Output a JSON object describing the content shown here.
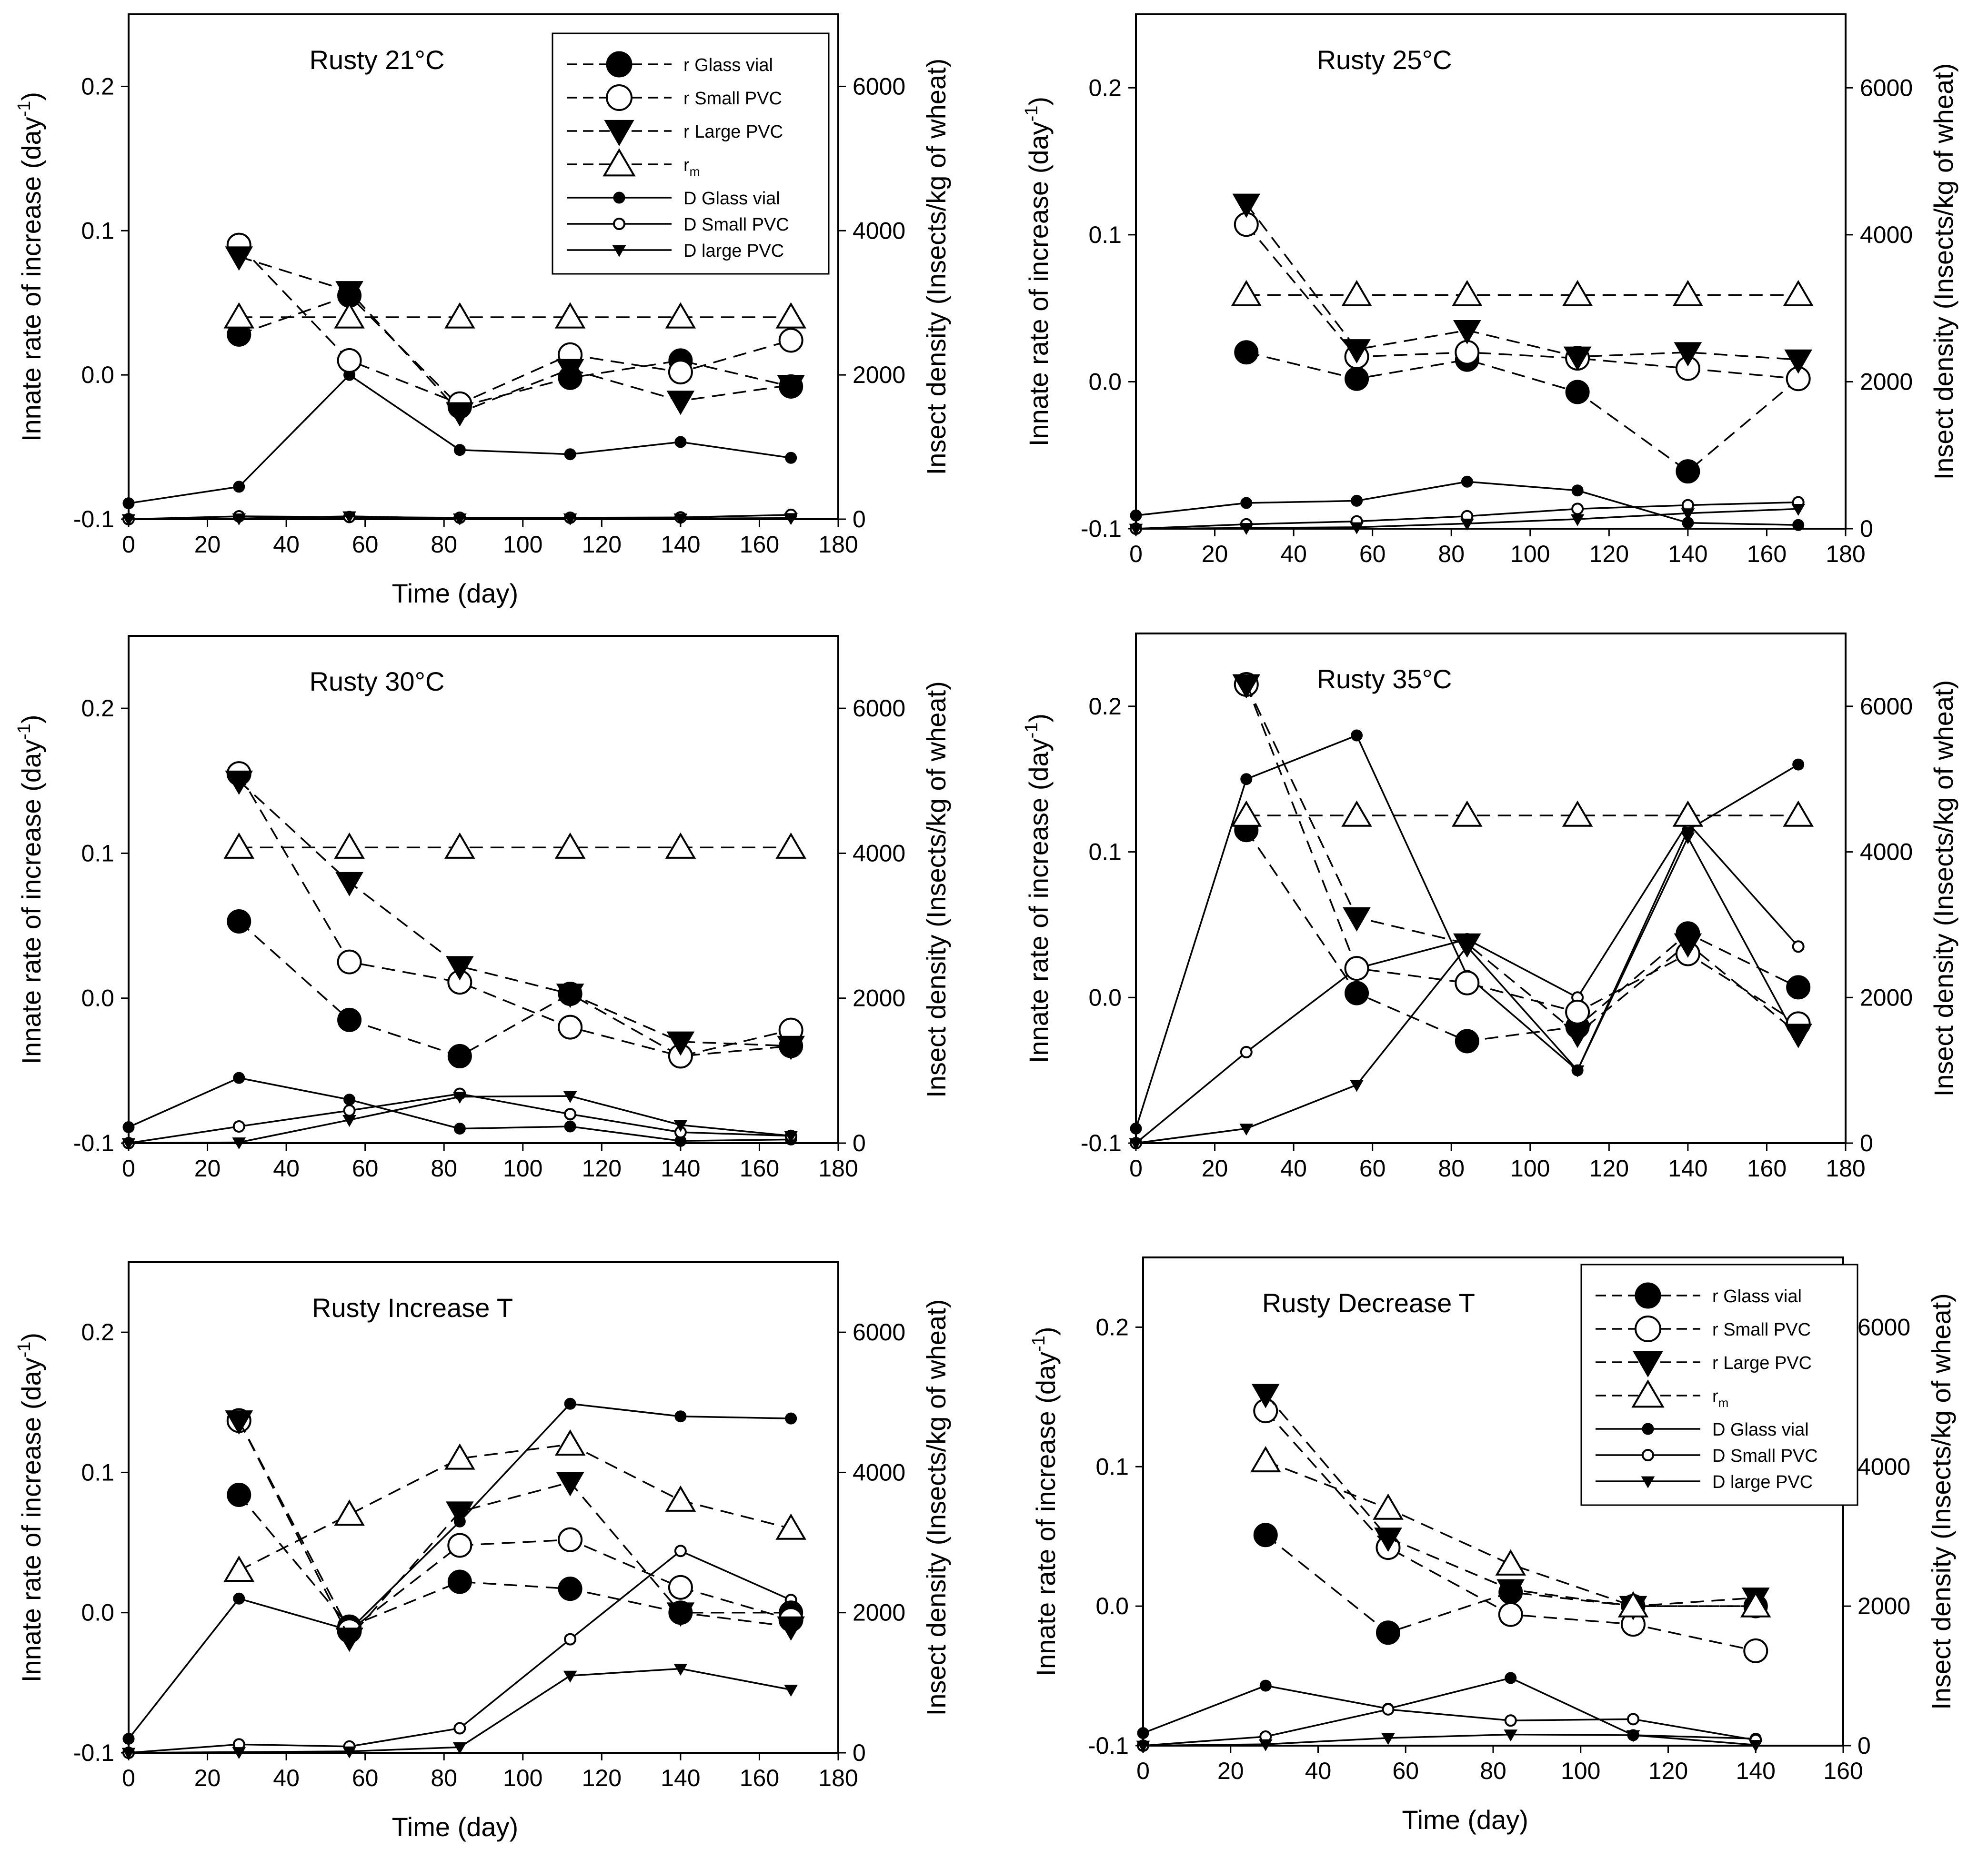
{
  "figure": {
    "time_label": "Time (day)"
  },
  "legend": {
    "r_glass": "r Glass vial",
    "r_small": "r Small PVC",
    "r_large": "r Large PVC",
    "rm_base": "r",
    "rm_sub": "m",
    "d_glass": "D Glass vial",
    "d_small": "D Small PVC",
    "d_large": "D large PVC"
  },
  "chart_data": [
    {
      "type": "line",
      "title": "Rusty 21°C",
      "xlabel": "Time (day)",
      "ylabel_left": "Innate rate of increase (day-1)",
      "ylabel_right": "Insect density (Insects/kg of wheat)",
      "xlim": [
        0,
        180
      ],
      "xticks": [
        0,
        20,
        40,
        60,
        80,
        100,
        120,
        140,
        160,
        180
      ],
      "ylim_left": [
        -0.1,
        0.25
      ],
      "yticks_left": [
        -0.1,
        0.0,
        0.1,
        0.2
      ],
      "ylim_right": [
        0,
        7000
      ],
      "yticks_right": [
        0,
        2000,
        4000,
        6000
      ],
      "show_legend": true,
      "legend_position": "top-right",
      "r_series": [
        {
          "name": "r Glass vial",
          "x": [
            28,
            56,
            84,
            112,
            140,
            168
          ],
          "y": [
            0.028,
            0.055,
            -0.022,
            -0.002,
            0.01,
            -0.008
          ]
        },
        {
          "name": "r Small PVC",
          "x": [
            28,
            56,
            84,
            112,
            140,
            168
          ],
          "y": [
            0.09,
            0.01,
            -0.02,
            0.014,
            0.002,
            0.024
          ]
        },
        {
          "name": "r Large PVC",
          "x": [
            28,
            56,
            84,
            112,
            140,
            168
          ],
          "y": [
            0.082,
            0.058,
            -0.026,
            0.004,
            -0.018,
            -0.007
          ]
        },
        {
          "name": "rm",
          "x": [
            28,
            56,
            84,
            112,
            140,
            168
          ],
          "y": [
            0.04,
            0.04,
            0.04,
            0.04,
            0.04,
            0.04
          ]
        }
      ],
      "d_series": [
        {
          "name": "D Glass vial",
          "x": [
            0,
            28,
            56,
            84,
            112,
            140,
            168
          ],
          "y": [
            220,
            450,
            2000,
            960,
            900,
            1070,
            850
          ]
        },
        {
          "name": "D Small PVC",
          "x": [
            0,
            28,
            56,
            84,
            112,
            140,
            168
          ],
          "y": [
            0,
            40,
            30,
            20,
            20,
            25,
            60
          ]
        },
        {
          "name": "D large PVC",
          "x": [
            0,
            28,
            56,
            84,
            112,
            140,
            168
          ],
          "y": [
            0,
            10,
            40,
            10,
            10,
            10,
            15
          ]
        }
      ]
    },
    {
      "type": "line",
      "title": "Rusty 25°C",
      "xlabel": "",
      "ylabel_left": "Innate rate of increase (day-1)",
      "ylabel_right": "Insect density (Insects/kg of wheat)",
      "xlim": [
        0,
        180
      ],
      "xticks": [
        0,
        20,
        40,
        60,
        80,
        100,
        120,
        140,
        160,
        180
      ],
      "ylim_left": [
        -0.1,
        0.25
      ],
      "yticks_left": [
        -0.1,
        0.0,
        0.1,
        0.2
      ],
      "ylim_right": [
        0,
        7000
      ],
      "yticks_right": [
        0,
        2000,
        4000,
        6000
      ],
      "show_legend": false,
      "legend_position": "",
      "r_series": [
        {
          "name": "r Glass vial",
          "x": [
            28,
            56,
            84,
            112,
            140,
            168
          ],
          "y": [
            0.02,
            0.002,
            0.015,
            -0.007,
            -0.061,
            0.002
          ]
        },
        {
          "name": "r Small PVC",
          "x": [
            28,
            56,
            84,
            112,
            140,
            168
          ],
          "y": [
            0.107,
            0.017,
            0.02,
            0.016,
            0.009,
            0.002
          ]
        },
        {
          "name": "r Large PVC",
          "x": [
            28,
            56,
            84,
            112,
            140,
            168
          ],
          "y": [
            0.121,
            0.022,
            0.035,
            0.017,
            0.02,
            0.015
          ]
        },
        {
          "name": "rm",
          "x": [
            28,
            56,
            84,
            112,
            140,
            168
          ],
          "y": [
            0.059,
            0.059,
            0.059,
            0.059,
            0.059,
            0.059
          ]
        }
      ],
      "d_series": [
        {
          "name": "D Glass vial",
          "x": [
            0,
            28,
            56,
            84,
            112,
            140,
            168
          ],
          "y": [
            180,
            350,
            380,
            640,
            520,
            80,
            50
          ]
        },
        {
          "name": "D Small PVC",
          "x": [
            0,
            28,
            56,
            84,
            112,
            140,
            168
          ],
          "y": [
            0,
            60,
            100,
            170,
            270,
            320,
            360
          ]
        },
        {
          "name": "D large PVC",
          "x": [
            0,
            28,
            56,
            84,
            112,
            140,
            168
          ],
          "y": [
            0,
            10,
            20,
            70,
            130,
            210,
            270
          ]
        }
      ]
    },
    {
      "type": "line",
      "title": "Rusty 30°C",
      "xlabel": "",
      "ylabel_left": "Innate rate of increase (day-1)",
      "ylabel_right": "Insect density (Insects/kg of wheat)",
      "xlim": [
        0,
        180
      ],
      "xticks": [
        0,
        20,
        40,
        60,
        80,
        100,
        120,
        140,
        160,
        180
      ],
      "ylim_left": [
        -0.1,
        0.25
      ],
      "yticks_left": [
        -0.1,
        0.0,
        0.1,
        0.2
      ],
      "ylim_right": [
        0,
        7000
      ],
      "yticks_right": [
        0,
        2000,
        4000,
        6000
      ],
      "show_legend": false,
      "legend_position": "",
      "r_series": [
        {
          "name": "r Glass vial",
          "x": [
            28,
            56,
            84,
            112,
            140,
            168
          ],
          "y": [
            0.053,
            -0.015,
            -0.04,
            0.003,
            -0.04,
            -0.033
          ]
        },
        {
          "name": "r Small PVC",
          "x": [
            28,
            56,
            84,
            112,
            140,
            168
          ],
          "y": [
            0.155,
            0.025,
            0.011,
            -0.02,
            -0.04,
            -0.022
          ]
        },
        {
          "name": "r Large PVC",
          "x": [
            28,
            56,
            84,
            112,
            140,
            168
          ],
          "y": [
            0.15,
            0.08,
            0.022,
            0.003,
            -0.03,
            -0.033
          ]
        },
        {
          "name": "rm",
          "x": [
            28,
            56,
            84,
            112,
            140,
            168
          ],
          "y": [
            0.104,
            0.104,
            0.104,
            0.104,
            0.104,
            0.104
          ]
        }
      ],
      "d_series": [
        {
          "name": "D Glass vial",
          "x": [
            0,
            28,
            56,
            84,
            112,
            140,
            168
          ],
          "y": [
            220,
            900,
            600,
            200,
            230,
            30,
            50
          ]
        },
        {
          "name": "D Small PVC",
          "x": [
            0,
            28,
            56,
            84,
            112,
            140,
            168
          ],
          "y": [
            0,
            230,
            450,
            680,
            400,
            150,
            100
          ]
        },
        {
          "name": "D large PVC",
          "x": [
            0,
            28,
            56,
            84,
            112,
            140,
            168
          ],
          "y": [
            0,
            10,
            320,
            640,
            650,
            250,
            100
          ]
        }
      ]
    },
    {
      "type": "line",
      "title": "Rusty 35°C",
      "xlabel": "",
      "ylabel_left": "Innate rate of increase (day-1)",
      "ylabel_right": "Insect density (Insects/kg of wheat)",
      "xlim": [
        0,
        180
      ],
      "xticks": [
        0,
        20,
        40,
        60,
        80,
        100,
        120,
        140,
        160,
        180
      ],
      "ylim_left": [
        -0.1,
        0.25
      ],
      "yticks_left": [
        -0.1,
        0.0,
        0.1,
        0.2
      ],
      "ylim_right": [
        0,
        7000
      ],
      "yticks_right": [
        0,
        2000,
        4000,
        6000
      ],
      "show_legend": false,
      "legend_position": "",
      "r_series": [
        {
          "name": "r Glass vial",
          "x": [
            28,
            56,
            84,
            112,
            140,
            168
          ],
          "y": [
            0.115,
            0.003,
            -0.03,
            -0.02,
            0.044,
            0.007
          ]
        },
        {
          "name": "r Small PVC",
          "x": [
            28,
            56,
            84,
            112,
            140,
            168
          ],
          "y": [
            0.215,
            0.02,
            0.01,
            -0.01,
            0.03,
            -0.018
          ]
        },
        {
          "name": "r Large PVC",
          "x": [
            28,
            56,
            84,
            112,
            140,
            168
          ],
          "y": [
            0.215,
            0.055,
            0.037,
            -0.025,
            0.037,
            -0.025
          ]
        },
        {
          "name": "rm",
          "x": [
            28,
            56,
            84,
            112,
            140,
            168
          ],
          "y": [
            0.125,
            0.125,
            0.125,
            0.125,
            0.125,
            0.125
          ]
        }
      ],
      "d_series": [
        {
          "name": "D Glass vial",
          "x": [
            0,
            28,
            56,
            84,
            112,
            140,
            168
          ],
          "y": [
            200,
            5000,
            5600,
            2300,
            1000,
            4300,
            5200
          ]
        },
        {
          "name": "D Small PVC",
          "x": [
            0,
            28,
            56,
            84,
            112,
            140,
            168
          ],
          "y": [
            0,
            1250,
            2400,
            2800,
            2000,
            4400,
            2700
          ]
        },
        {
          "name": "D large PVC",
          "x": [
            0,
            28,
            56,
            84,
            112,
            140,
            168
          ],
          "y": [
            0,
            200,
            800,
            2700,
            1000,
            4200,
            1400
          ]
        }
      ]
    },
    {
      "type": "line",
      "title": "Rusty Increase T",
      "xlabel": "Time (day)",
      "ylabel_left": "Innate rate of increase (day-1)",
      "ylabel_right": "Insect density (Insects/kg of wheat)",
      "xlim": [
        0,
        180
      ],
      "xticks": [
        0,
        20,
        40,
        60,
        80,
        100,
        120,
        140,
        160,
        180
      ],
      "ylim_left": [
        -0.1,
        0.25
      ],
      "yticks_left": [
        -0.1,
        0.0,
        0.1,
        0.2
      ],
      "ylim_right": [
        0,
        7000
      ],
      "yticks_right": [
        0,
        2000,
        4000,
        6000
      ],
      "show_legend": false,
      "legend_position": "",
      "r_series": [
        {
          "name": "r Glass vial",
          "x": [
            28,
            56,
            84,
            112,
            140,
            168
          ],
          "y": [
            0.084,
            -0.01,
            0.022,
            0.017,
            0.0,
            0.0
          ]
        },
        {
          "name": "r Small PVC",
          "x": [
            28,
            56,
            84,
            112,
            140,
            168
          ],
          "y": [
            0.137,
            -0.013,
            0.048,
            0.052,
            0.018,
            -0.005
          ]
        },
        {
          "name": "r Large PVC",
          "x": [
            28,
            56,
            84,
            112,
            140,
            168
          ],
          "y": [
            0.137,
            -0.018,
            0.072,
            0.093,
            0.0,
            -0.01
          ]
        },
        {
          "name": "rm",
          "x": [
            28,
            56,
            84,
            112,
            140,
            168
          ],
          "y": [
            0.03,
            0.07,
            0.11,
            0.12,
            0.08,
            0.06
          ]
        }
      ],
      "d_series": [
        {
          "name": "D Glass vial",
          "x": [
            0,
            28,
            56,
            84,
            112,
            140,
            168
          ],
          "y": [
            200,
            2200,
            1750,
            3300,
            4980,
            4800,
            4770
          ]
        },
        {
          "name": "D Small PVC",
          "x": [
            0,
            28,
            56,
            84,
            112,
            140,
            168
          ],
          "y": [
            0,
            120,
            90,
            350,
            1620,
            2880,
            2180
          ]
        },
        {
          "name": "D large PVC",
          "x": [
            0,
            28,
            56,
            84,
            112,
            140,
            168
          ],
          "y": [
            0,
            10,
            20,
            80,
            1100,
            1200,
            900
          ]
        }
      ]
    },
    {
      "type": "line",
      "title": "Rusty Decrease T",
      "xlabel": "Time (day)",
      "ylabel_left": "Innate rate of increase (day-1)",
      "ylabel_right": "Insect density (Insects/kg of wheat)",
      "xlim": [
        0,
        160
      ],
      "xticks": [
        0,
        20,
        40,
        60,
        80,
        100,
        120,
        140,
        160
      ],
      "ylim_left": [
        -0.1,
        0.25
      ],
      "yticks_left": [
        -0.1,
        0.0,
        0.1,
        0.2
      ],
      "ylim_right": [
        0,
        7000
      ],
      "yticks_right": [
        0,
        2000,
        4000,
        6000
      ],
      "show_legend": true,
      "legend_position": "top-right",
      "r_series": [
        {
          "name": "r Glass vial",
          "x": [
            28,
            56,
            84,
            112,
            140
          ],
          "y": [
            0.051,
            -0.019,
            0.01,
            0.0,
            0.0
          ]
        },
        {
          "name": "r Small PVC",
          "x": [
            28,
            56,
            84,
            112,
            140
          ],
          "y": [
            0.14,
            0.042,
            -0.006,
            -0.013,
            -0.032
          ]
        },
        {
          "name": "r Large PVC",
          "x": [
            28,
            56,
            84,
            112,
            140
          ],
          "y": [
            0.152,
            0.049,
            0.012,
            0.0,
            0.006
          ]
        },
        {
          "name": "rm",
          "x": [
            28,
            56,
            84,
            112,
            140
          ],
          "y": [
            0.104,
            0.07,
            0.03,
            0.0,
            0.0
          ]
        }
      ],
      "d_series": [
        {
          "name": "D Glass vial",
          "x": [
            0,
            28,
            56,
            84,
            112,
            140
          ],
          "y": [
            180,
            860,
            530,
            970,
            150,
            100
          ]
        },
        {
          "name": "D Small PVC",
          "x": [
            0,
            28,
            56,
            84,
            112,
            140
          ],
          "y": [
            0,
            130,
            520,
            360,
            380,
            80
          ]
        },
        {
          "name": "D large PVC",
          "x": [
            0,
            28,
            56,
            84,
            112,
            140
          ],
          "y": [
            0,
            20,
            110,
            160,
            150,
            10
          ]
        }
      ]
    }
  ]
}
